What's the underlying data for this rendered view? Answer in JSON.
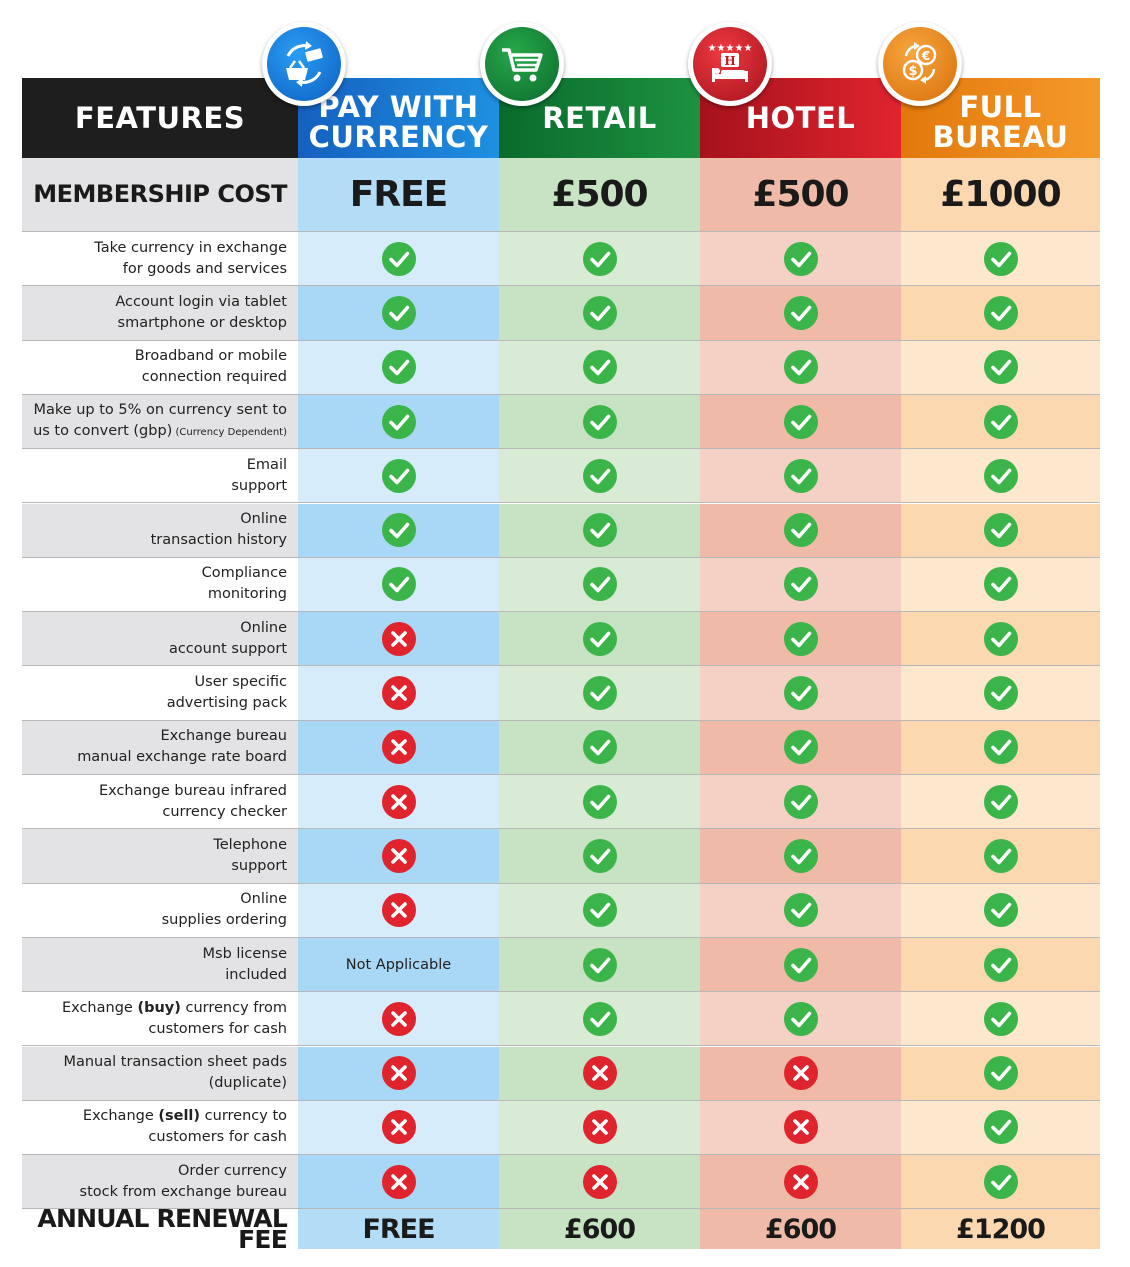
{
  "colors": {
    "check": "#3bb54a",
    "cross": "#e0242e",
    "features_header": "#1e1e1e",
    "pay_with_currency": "#1e90e0",
    "retail": "#1d9140",
    "hotel": "#e0242e",
    "full_bureau": "#f59a2a"
  },
  "header": {
    "features": "FEATURES",
    "plans": [
      {
        "name": "PAY WITH\nCURRENCY",
        "icon": "basket-currency-exchange-icon"
      },
      {
        "name": "RETAIL",
        "icon": "shopping-cart-icon"
      },
      {
        "name": "HOTEL",
        "icon": "hotel-bed-stars-icon"
      },
      {
        "name": "FULL\nBUREAU",
        "icon": "currency-exchange-coins-icon"
      }
    ]
  },
  "membership": {
    "label": "MEMBERSHIP COST",
    "values": [
      "FREE",
      "£500",
      "£500",
      "£1000"
    ]
  },
  "features": [
    {
      "label": "Take currency in exchange\nfor goods and services",
      "values": [
        "check",
        "check",
        "check",
        "check"
      ]
    },
    {
      "label": "Account login via tablet\nsmartphone or desktop",
      "values": [
        "check",
        "check",
        "check",
        "check"
      ]
    },
    {
      "label": "Broadband or mobile\nconnection required",
      "values": [
        "check",
        "check",
        "check",
        "check"
      ]
    },
    {
      "label": "Make up to 5% on currency sent to\nus to  convert (gbp)",
      "note": "(Currency Dependent)",
      "values": [
        "check",
        "check",
        "check",
        "check"
      ]
    },
    {
      "label": "Email\nsupport",
      "values": [
        "check",
        "check",
        "check",
        "check"
      ]
    },
    {
      "label": "Online\ntransaction history",
      "values": [
        "check",
        "check",
        "check",
        "check"
      ]
    },
    {
      "label": "Compliance\nmonitoring",
      "values": [
        "check",
        "check",
        "check",
        "check"
      ]
    },
    {
      "label": "Online\naccount support",
      "values": [
        "cross",
        "check",
        "check",
        "check"
      ]
    },
    {
      "label": "User specific\nadvertising pack",
      "values": [
        "cross",
        "check",
        "check",
        "check"
      ]
    },
    {
      "label": "Exchange bureau\nmanual exchange rate board",
      "values": [
        "cross",
        "check",
        "check",
        "check"
      ]
    },
    {
      "label": "Exchange bureau infrared\ncurrency checker",
      "values": [
        "cross",
        "check",
        "check",
        "check"
      ]
    },
    {
      "label": "Telephone\nsupport",
      "values": [
        "cross",
        "check",
        "check",
        "check"
      ]
    },
    {
      "label": "Online\nsupplies ordering",
      "values": [
        "cross",
        "check",
        "check",
        "check"
      ]
    },
    {
      "label": "Msb license\nincluded",
      "values": [
        "Not Applicable",
        "check",
        "check",
        "check"
      ]
    },
    {
      "label": "Exchange (buy) currency  from\ncustomers for cash",
      "bold_word": "(buy)",
      "values": [
        "cross",
        "check",
        "check",
        "check"
      ]
    },
    {
      "label": "Manual transaction sheet pads\n(duplicate)",
      "values": [
        "cross",
        "cross",
        "cross",
        "check"
      ]
    },
    {
      "label": "Exchange (sell) currency to\ncustomers for cash",
      "bold_word": "(sell)",
      "values": [
        "cross",
        "cross",
        "cross",
        "check"
      ]
    },
    {
      "label": "Order currency\nstock from exchange bureau",
      "values": [
        "cross",
        "cross",
        "cross",
        "check"
      ]
    }
  ],
  "renewal": {
    "label": "ANNUAL RENEWAL FEE",
    "values": [
      "FREE",
      "£600",
      "£600",
      "£1200"
    ]
  }
}
